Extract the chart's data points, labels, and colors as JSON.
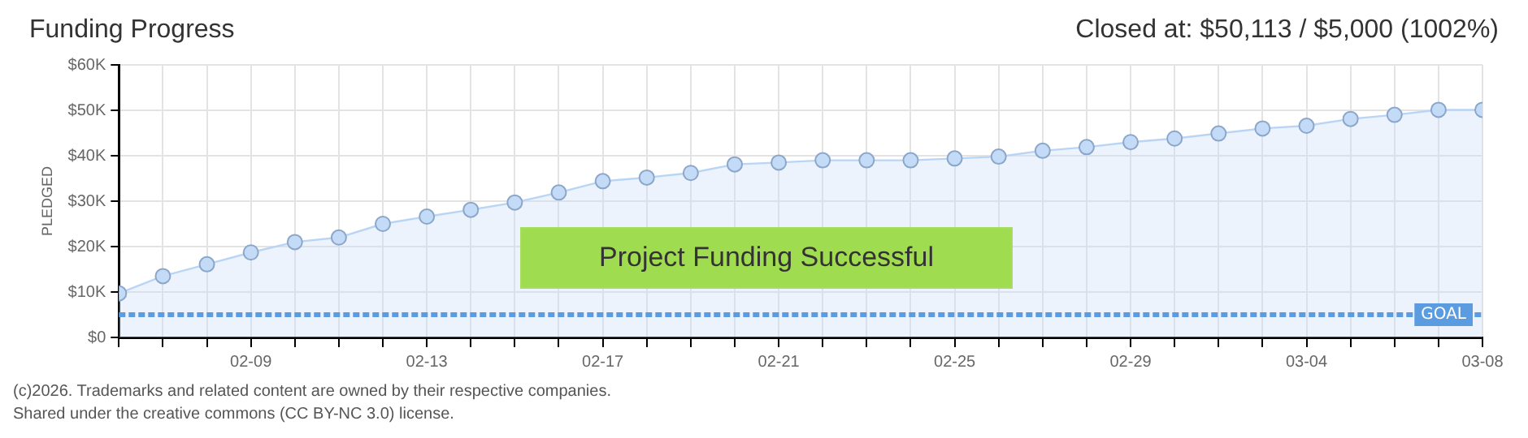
{
  "chart_data": {
    "type": "area",
    "title": "Funding Progress",
    "subtitle": "Closed at: $50,113 / $5,000 (1002%)",
    "ylabel": "PLEDGED",
    "x": [
      "--02-06",
      "--02-07",
      "--02-08",
      "--02-09",
      "--02-10",
      "--02-11",
      "--02-12",
      "--02-13",
      "--02-14",
      "--02-15",
      "--02-16",
      "--02-17",
      "--02-18",
      "--02-19",
      "--02-20",
      "--02-21",
      "--02-22",
      "--02-23",
      "--02-24",
      "--02-25",
      "--02-26",
      "--02-27",
      "--02-28",
      "--02-29",
      "--03-01",
      "--03-02",
      "--03-03",
      "--03-04",
      "--03-05",
      "--03-06",
      "--03-07",
      "--03-08"
    ],
    "series": [
      {
        "color": "#b9d5f5",
        "values": [
          9700,
          13500,
          16100,
          18700,
          21000,
          22000,
          25000,
          26600,
          28100,
          29700,
          31900,
          34400,
          35200,
          36200,
          38100,
          38500,
          39000,
          39000,
          39000,
          39400,
          39800,
          41100,
          41900,
          43000,
          43800,
          44900,
          46000,
          46600,
          48100,
          49000,
          50100,
          50100
        ]
      }
    ],
    "xlim": [
      "--02-06",
      "--03-08"
    ],
    "xticks": [
      {
        "value": "--02-06",
        "label": null
      },
      {
        "value": "--02-07",
        "label": null
      },
      {
        "value": "--02-08",
        "label": null
      },
      {
        "value": "--02-09",
        "label": "02-09"
      },
      {
        "value": "--02-10",
        "label": null
      },
      {
        "value": "--02-11",
        "label": null
      },
      {
        "value": "--02-12",
        "label": null
      },
      {
        "value": "--02-13",
        "label": "02-13"
      },
      {
        "value": "--02-14",
        "label": null
      },
      {
        "value": "--02-15",
        "label": null
      },
      {
        "value": "--02-16",
        "label": null
      },
      {
        "value": "--02-17",
        "label": "02-17"
      },
      {
        "value": "--02-18",
        "label": null
      },
      {
        "value": "--02-19",
        "label": null
      },
      {
        "value": "--02-20",
        "label": null
      },
      {
        "value": "--02-21",
        "label": "02-21"
      },
      {
        "value": "--02-22",
        "label": null
      },
      {
        "value": "--02-23",
        "label": null
      },
      {
        "value": "--02-24",
        "label": null
      },
      {
        "value": "--02-25",
        "label": "02-25"
      },
      {
        "value": "--02-26",
        "label": null
      },
      {
        "value": "--02-27",
        "label": null
      },
      {
        "value": "--02-28",
        "label": null
      },
      {
        "value": "--02-29",
        "label": "02-29"
      },
      {
        "value": "--03-01",
        "label": null
      },
      {
        "value": "--03-02",
        "label": null
      },
      {
        "value": "--03-03",
        "label": null
      },
      {
        "value": "--03-04",
        "label": "03-04"
      },
      {
        "value": "--03-05",
        "label": null
      },
      {
        "value": "--03-06",
        "label": null
      },
      {
        "value": "--03-07",
        "label": null
      },
      {
        "value": "--03-08",
        "label": "03-08"
      }
    ],
    "ylim": [
      0,
      60000
    ],
    "yticks": [
      {
        "value": 0,
        "label": "$0"
      },
      {
        "value": 10000,
        "label": "$10K"
      },
      {
        "value": 20000,
        "label": "$20K"
      },
      {
        "value": 30000,
        "label": "$30K"
      },
      {
        "value": 40000,
        "label": "$40K"
      },
      {
        "value": 50000,
        "label": "$50K"
      },
      {
        "value": 60000,
        "label": "$60K"
      }
    ],
    "ref_lines": [
      {
        "axis": "y",
        "value": 5000,
        "label": "GOAL",
        "color": "#5b9be0",
        "line_style": "dashed"
      }
    ],
    "grid": true,
    "marker": "circle",
    "legend": false,
    "annotations": [
      "Project Funding Successful",
      "(c)2026. Trademarks and related content are owned by their respective companies.",
      "Shared under the creative commons (CC BY-NC 3.0) license."
    ]
  }
}
